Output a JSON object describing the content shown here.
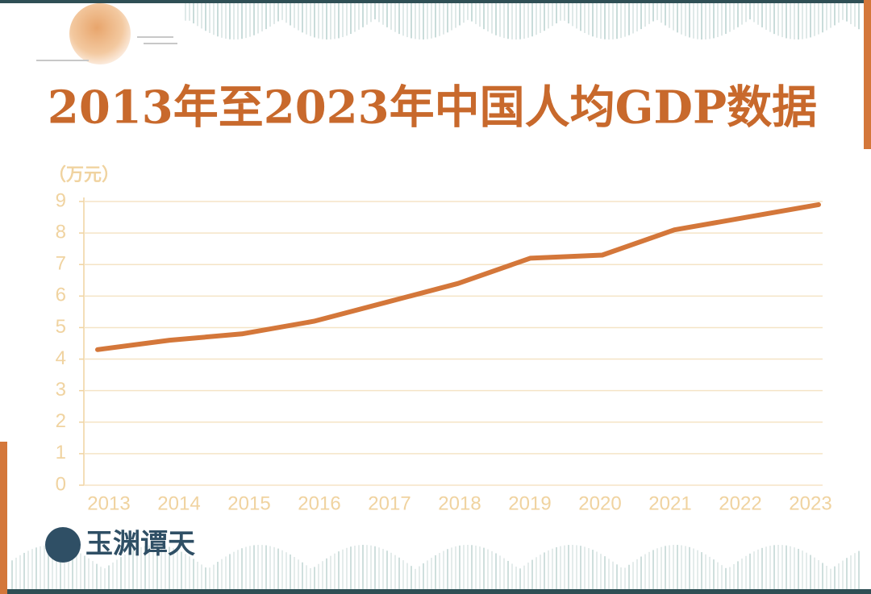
{
  "chart_data": {
    "type": "line",
    "title": "2013年至2023年中国人均GDP数据",
    "y_label": "（万元）",
    "categories": [
      "2013",
      "2014",
      "2015",
      "2016",
      "2017",
      "2018",
      "2019",
      "2020",
      "2021",
      "2022",
      "2023"
    ],
    "values": [
      4.3,
      4.6,
      4.8,
      5.2,
      5.8,
      6.4,
      7.2,
      7.3,
      8.1,
      8.5,
      8.9
    ],
    "color": "#d4773a",
    "ylim": [
      0,
      9
    ],
    "yticks": [
      0,
      1,
      2,
      3,
      4,
      5,
      6,
      7,
      8,
      9
    ],
    "grid": true
  },
  "logo": "玉渊谭天"
}
